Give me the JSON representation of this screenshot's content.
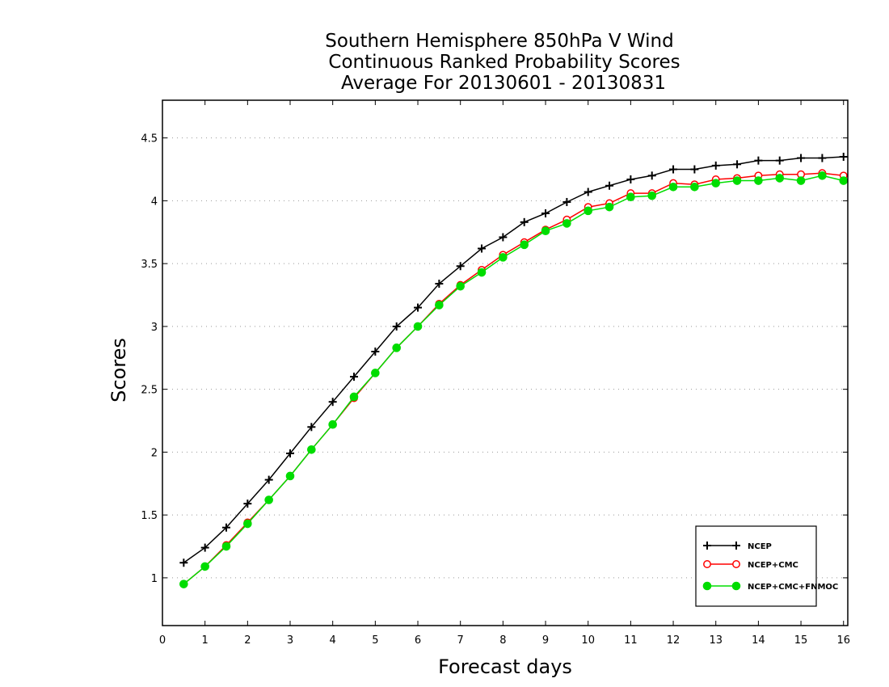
{
  "chart_data": {
    "type": "line",
    "title": [
      "Southern Hemisphere 850hPa V Wind",
      "Continuous Ranked Probability Scores",
      "Average For 20130601 - 20130831"
    ],
    "xlabel": "Forecast days",
    "ylabel": "Scores",
    "xlim": [
      0,
      16.1
    ],
    "ylim": [
      0.62,
      4.8
    ],
    "xticks": [
      "0",
      "1",
      "2",
      "3",
      "4",
      "5",
      "6",
      "7",
      "8",
      "9",
      "10",
      "11",
      "12",
      "13",
      "14",
      "15",
      "16"
    ],
    "yticks": [
      "1",
      "1.5",
      "2",
      "2.5",
      "3",
      "3.5",
      "4",
      "4.5"
    ],
    "grid": "horizontal dotted",
    "legend_position": "bottom-right",
    "x": [
      0.5,
      1,
      1.5,
      2,
      2.5,
      3,
      3.5,
      4,
      4.5,
      5,
      5.5,
      6,
      6.5,
      7,
      7.5,
      8,
      8.5,
      9,
      9.5,
      10,
      10.5,
      11,
      11.5,
      12,
      12.5,
      13,
      13.5,
      14,
      14.5,
      15,
      15.5,
      16
    ],
    "series": [
      {
        "name": "NCEP",
        "color": "#000000",
        "marker": "plus",
        "values": [
          1.12,
          1.24,
          1.4,
          1.59,
          1.78,
          1.99,
          2.2,
          2.4,
          2.6,
          2.8,
          3.0,
          3.15,
          3.34,
          3.48,
          3.62,
          3.71,
          3.83,
          3.9,
          3.99,
          4.07,
          4.12,
          4.17,
          4.2,
          4.25,
          4.25,
          4.28,
          4.29,
          4.32,
          4.32,
          4.34,
          4.34,
          4.35
        ]
      },
      {
        "name": "NCEP+CMC",
        "color": "#ff0000",
        "marker": "open-circle",
        "values": [
          0.95,
          1.09,
          1.26,
          1.44,
          1.62,
          1.81,
          2.02,
          2.22,
          2.43,
          2.63,
          2.83,
          3.0,
          3.18,
          3.33,
          3.45,
          3.57,
          3.67,
          3.77,
          3.85,
          3.95,
          3.98,
          4.06,
          4.06,
          4.14,
          4.13,
          4.17,
          4.18,
          4.2,
          4.21,
          4.21,
          4.22,
          4.2
        ]
      },
      {
        "name": "NCEP+CMC+FNMOC",
        "color": "#00dd00",
        "marker": "filled-circle",
        "values": [
          0.95,
          1.09,
          1.25,
          1.43,
          1.62,
          1.81,
          2.02,
          2.22,
          2.44,
          2.63,
          2.83,
          3.0,
          3.17,
          3.32,
          3.43,
          3.55,
          3.65,
          3.76,
          3.82,
          3.92,
          3.95,
          4.03,
          4.04,
          4.11,
          4.11,
          4.14,
          4.16,
          4.16,
          4.18,
          4.16,
          4.2,
          4.16
        ]
      }
    ]
  }
}
